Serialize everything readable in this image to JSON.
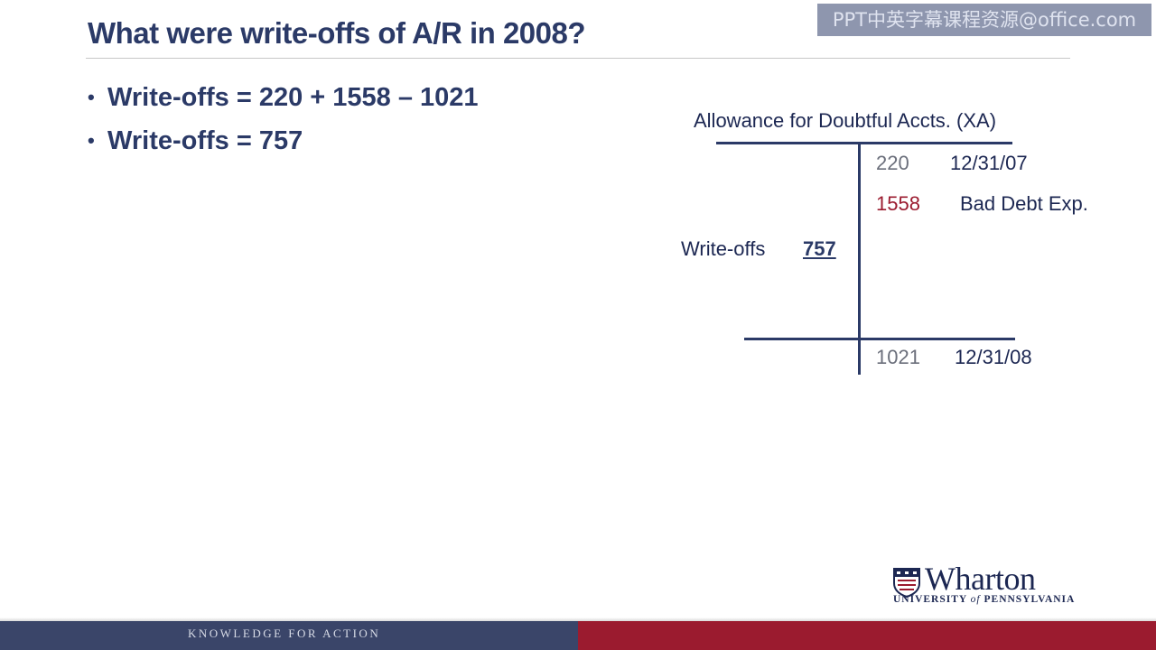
{
  "slide": {
    "title": "What were write-offs of A/R in 2008?",
    "watermark": "PPT中英字幕课程资源@office.com"
  },
  "bullets": [
    {
      "text": "Write-offs = 220 + 1558 – 1021"
    },
    {
      "text": "Write-offs = 757"
    }
  ],
  "t_account": {
    "title": "Allowance for Doubtful Accts. (XA)",
    "debit_label": "Write-offs",
    "debit_value": "757",
    "credit_entries": [
      {
        "value": "220",
        "label": "12/31/07",
        "color": "#6b6f7b"
      },
      {
        "value": "1558",
        "label": "Bad Debt Exp.",
        "color": "#9b1b2f"
      }
    ],
    "ending_value": "1021",
    "ending_label": "12/31/08"
  },
  "logo": {
    "name": "Wharton",
    "subtitle_part1": "UNIVERSITY",
    "subtitle_of": "of",
    "subtitle_part2": "PENNSYLVANIA",
    "icon": "penn-shield-icon"
  },
  "footer": {
    "tagline": "KNOWLEDGE FOR ACTION",
    "left_color": "#3a4569",
    "right_color": "#9b1b2f"
  }
}
